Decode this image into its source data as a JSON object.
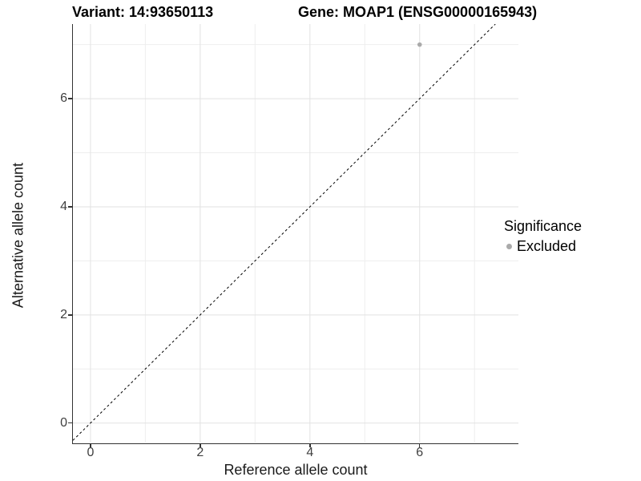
{
  "titles": {
    "variant": "Variant: 14:93650113",
    "gene": "Gene: MOAP1 (ENSG00000165943)"
  },
  "chart_data": {
    "type": "scatter",
    "title": "Variant: 14:93650113   Gene: MOAP1 (ENSG00000165943)",
    "xlabel": "Reference allele count",
    "ylabel": "Alternative allele count",
    "xlim": [
      -0.32,
      7.8
    ],
    "ylim": [
      -0.36,
      7.38
    ],
    "x_ticks": [
      0,
      2,
      4,
      6
    ],
    "y_ticks": [
      0,
      2,
      4,
      6
    ],
    "x_minor_ticks": [
      1,
      3,
      5,
      7
    ],
    "y_minor_ticks": [
      1,
      3,
      5,
      7
    ],
    "grid": true,
    "points": [
      {
        "x": 6,
        "y": 7,
        "series": "Excluded"
      }
    ],
    "reference_line": {
      "style": "dashed",
      "intercept": 0,
      "slope": 1
    },
    "legend": {
      "title": "Significance",
      "position": "right",
      "entries": [
        {
          "label": "Excluded",
          "color": "#aaaaaa"
        }
      ]
    }
  },
  "colors": {
    "background": "#ffffff",
    "point": "#aaaaaa",
    "grid_major": "#e2e2e2",
    "grid_minor": "#eeeeee",
    "axis_line": "#333333",
    "axis_text": "#404040",
    "title_text": "#000000",
    "dashed_line": "#000000"
  }
}
